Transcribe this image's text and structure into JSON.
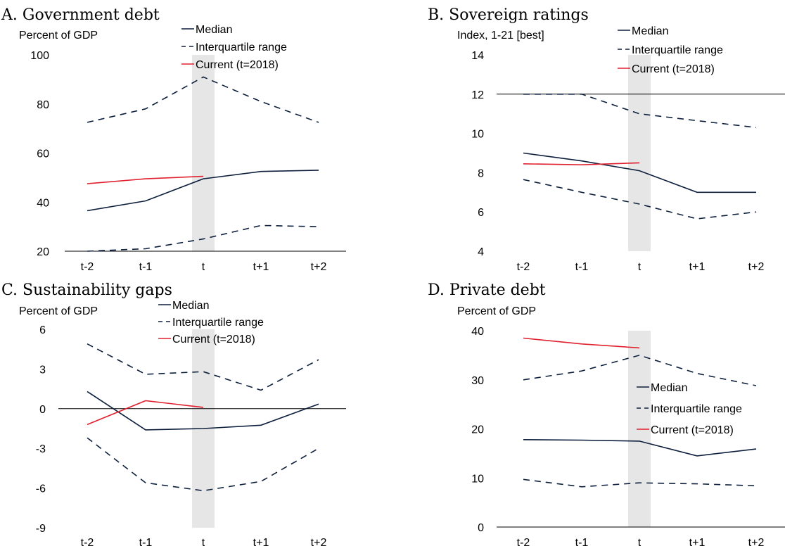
{
  "colors": {
    "median": "#0d1f3c",
    "iqr": "#0d1f3c",
    "current": "#e0202e",
    "shade": "#e6e6e6",
    "axis": "#000000"
  },
  "chart_data": [
    {
      "type": "line",
      "title": "A. Government debt",
      "ylabel": "Percent of GDP",
      "categories": [
        "t-2",
        "t-1",
        "t",
        "t+1",
        "t+2"
      ],
      "ylim": [
        20,
        100
      ],
      "yticks": [
        20,
        40,
        60,
        80,
        100
      ],
      "baseline": 20,
      "shaded_category": "t",
      "legend_position": "top-center",
      "series": [
        {
          "name": "Median",
          "style": "solid",
          "values": [
            36.5,
            40.5,
            49.5,
            52.5,
            53
          ]
        },
        {
          "name": "Interquartile range",
          "style": "dashed",
          "values": [
            72.5,
            78,
            91,
            81,
            72.5
          ]
        },
        {
          "style": "dashed",
          "values": [
            20,
            21,
            25,
            30.5,
            30
          ]
        },
        {
          "name": "Current (t=2018)",
          "style": "current",
          "values": [
            47.5,
            49.5,
            50.5,
            null,
            null
          ]
        }
      ]
    },
    {
      "type": "line",
      "title": "B. Sovereign ratings",
      "ylabel": "Index, 1-21 [best]",
      "categories": [
        "t-2",
        "t-1",
        "t",
        "t+1",
        "t+2"
      ],
      "ylim": [
        4,
        14
      ],
      "yticks": [
        4,
        6,
        8,
        10,
        12,
        14
      ],
      "baseline": 12,
      "shaded_category": "t",
      "legend_position": "top-center",
      "series": [
        {
          "name": "Median",
          "style": "solid",
          "values": [
            9,
            8.6,
            8.1,
            7,
            7
          ]
        },
        {
          "name": "Interquartile range",
          "style": "dashed",
          "values": [
            12,
            12,
            11,
            10.65,
            10.3
          ]
        },
        {
          "style": "dashed",
          "values": [
            7.65,
            7,
            6.4,
            5.65,
            6
          ]
        },
        {
          "name": "Current (t=2018)",
          "style": "current",
          "values": [
            8.45,
            8.4,
            8.5,
            null,
            null
          ]
        }
      ]
    },
    {
      "type": "line",
      "title": "C. Sustainability gaps",
      "ylabel": "Percent of GDP",
      "categories": [
        "t-2",
        "t-1",
        "t",
        "t+1",
        "t+2"
      ],
      "ylim": [
        -9,
        6
      ],
      "yticks": [
        -9,
        -6,
        -3,
        0,
        3,
        6
      ],
      "baseline": 0,
      "shaded_category": "t",
      "legend_position": "top-center",
      "series": [
        {
          "name": "Median",
          "style": "solid",
          "values": [
            1.3,
            -1.6,
            -1.5,
            -1.25,
            0.35
          ]
        },
        {
          "name": "Interquartile range",
          "style": "dashed",
          "values": [
            4.9,
            2.6,
            2.8,
            1.4,
            3.7
          ]
        },
        {
          "style": "dashed",
          "values": [
            -2.2,
            -5.6,
            -6.2,
            -5.5,
            -3
          ]
        },
        {
          "name": "Current (t=2018)",
          "style": "current",
          "values": [
            -1.2,
            0.6,
            0.1,
            null,
            null
          ]
        }
      ]
    },
    {
      "type": "line",
      "title": "D. Private debt",
      "ylabel": "Percent of GDP",
      "categories": [
        "t-2",
        "t-1",
        "t",
        "t+1",
        "t+2"
      ],
      "ylim": [
        0,
        40
      ],
      "yticks": [
        0,
        10,
        20,
        30,
        40
      ],
      "baseline": 0,
      "shaded_category": "t",
      "legend_position": "center-right",
      "series": [
        {
          "name": "Median",
          "style": "solid",
          "values": [
            17.8,
            17.7,
            17.5,
            14.5,
            15.9
          ]
        },
        {
          "name": "Interquartile range",
          "style": "dashed",
          "values": [
            30,
            31.8,
            35,
            31.3,
            28.8
          ]
        },
        {
          "style": "dashed",
          "values": [
            9.7,
            8.2,
            9,
            8.8,
            8.4
          ]
        },
        {
          "name": "Current (t=2018)",
          "style": "current",
          "values": [
            38.5,
            37.3,
            36.5,
            null,
            null
          ]
        }
      ]
    }
  ]
}
